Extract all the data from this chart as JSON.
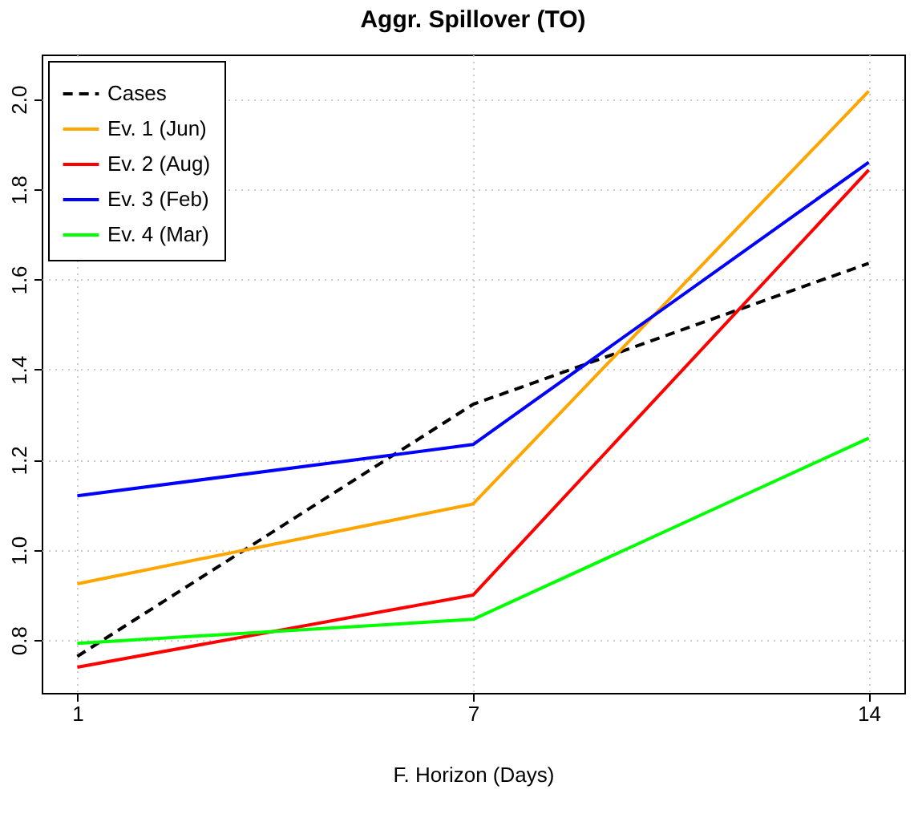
{
  "chart_data": {
    "type": "line",
    "title": "Aggr. Spillover (TO)",
    "xlabel": "F. Horizon (Days)",
    "categories": [
      "1",
      "7",
      "14"
    ],
    "series": [
      {
        "name": "Cases",
        "color": "#000000",
        "line_style": "dashed",
        "values": [
          0.764,
          1.323,
          1.636
        ]
      },
      {
        "name": "Ev. 1 (Jun)",
        "color": "#ffa500",
        "values": [
          0.925,
          1.102,
          2.018
        ]
      },
      {
        "name": "Ev. 2 (Aug)",
        "color": "#ff0000",
        "values": [
          0.74,
          0.9,
          1.843
        ]
      },
      {
        "name": "Ev. 3 (Feb)",
        "color": "#0000ff",
        "values": [
          1.12,
          1.234,
          1.86
        ]
      },
      {
        "name": "Ev. 4 (Mar)",
        "color": "#00ff00",
        "values": [
          0.793,
          0.846,
          1.248
        ]
      }
    ],
    "ylim": [
      0.683,
      2.099
    ],
    "yticks": [
      0.8,
      {
        "value": 1,
        "label": "1.0"
      },
      1.2,
      1.4,
      1.6,
      1.8,
      {
        "value": 2,
        "label": "2.0"
      }
    ],
    "grid": true,
    "legend": "top left",
    "line_style": "solid",
    "marker": "none"
  }
}
